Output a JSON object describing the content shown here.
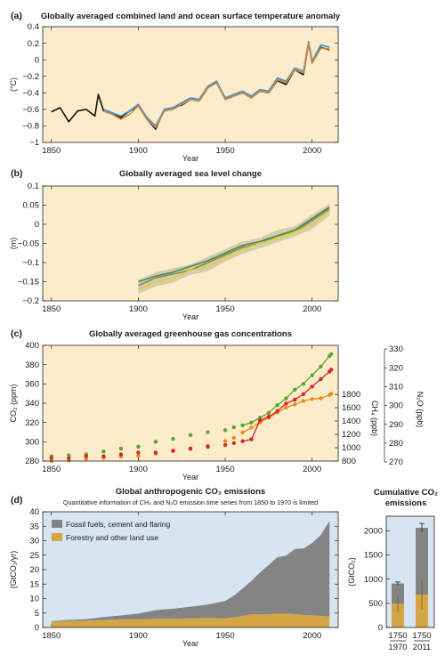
{
  "colors": {
    "panel_bg": "#fcecc9",
    "emissions_bg": "#d7e4f1",
    "temp_black": "#111111",
    "temp_blue": "#3b8fd4",
    "temp_orange": "#d5883c",
    "sea_yellow": "#e3d21e",
    "sea_green": "#4a8a3a",
    "sea_gray": "#808080",
    "co2_green": "#58a82e",
    "ch4_orange": "#ee8a16",
    "n2o_red": "#d8242c",
    "fossil_gray": "#848484",
    "forestry_gold": "#d4a543"
  },
  "chart_data": [
    {
      "panel_label": "(a)",
      "type": "line",
      "title": "Globally averaged combined land and ocean surface temperature anomaly",
      "xlabel": "Year",
      "ylabel": "(°C)",
      "xlim": [
        1845,
        2015
      ],
      "ylim": [
        -1,
        0.4
      ],
      "xticks": [
        1850,
        1900,
        1950,
        2000
      ],
      "yticks": [
        -1,
        -0.8,
        -0.6,
        -0.4,
        -0.2,
        0,
        0.2,
        0.4
      ],
      "ytick_labels": [
        "−1",
        "−0.8",
        "−0.6",
        "−0.4",
        "−0.2",
        "0",
        "0.2",
        "0.4"
      ],
      "series": [
        {
          "key": "black",
          "x": [
            1850,
            1855,
            1860,
            1865,
            1870,
            1875,
            1877,
            1880,
            1885,
            1890,
            1895,
            1900,
            1905,
            1910,
            1915,
            1920,
            1925,
            1930,
            1935,
            1940,
            1945,
            1950,
            1955,
            1960,
            1965,
            1970,
            1975,
            1980,
            1985,
            1990,
            1995,
            1998,
            2000,
            2005,
            2010
          ],
          "y": [
            -0.63,
            -0.58,
            -0.75,
            -0.62,
            -0.6,
            -0.68,
            -0.42,
            -0.62,
            -0.66,
            -0.7,
            -0.62,
            -0.56,
            -0.72,
            -0.84,
            -0.6,
            -0.58,
            -0.55,
            -0.48,
            -0.5,
            -0.34,
            -0.26,
            -0.48,
            -0.44,
            -0.4,
            -0.46,
            -0.38,
            -0.4,
            -0.25,
            -0.3,
            -0.12,
            -0.18,
            0.2,
            -0.04,
            0.15,
            0.12
          ]
        },
        {
          "key": "blue",
          "x": [
            1880,
            1885,
            1890,
            1895,
            1900,
            1905,
            1910,
            1915,
            1920,
            1925,
            1930,
            1935,
            1940,
            1945,
            1950,
            1955,
            1960,
            1965,
            1970,
            1975,
            1980,
            1985,
            1990,
            1995,
            1998,
            2000,
            2005,
            2010
          ],
          "y": [
            -0.6,
            -0.64,
            -0.68,
            -0.62,
            -0.54,
            -0.7,
            -0.8,
            -0.6,
            -0.58,
            -0.52,
            -0.46,
            -0.48,
            -0.32,
            -0.26,
            -0.46,
            -0.42,
            -0.38,
            -0.44,
            -0.36,
            -0.38,
            -0.22,
            -0.26,
            -0.1,
            -0.14,
            0.22,
            -0.02,
            0.18,
            0.15
          ]
        },
        {
          "key": "orange",
          "x": [
            1880,
            1885,
            1890,
            1895,
            1900,
            1905,
            1910,
            1915,
            1920,
            1925,
            1930,
            1935,
            1940,
            1945,
            1950,
            1955,
            1960,
            1965,
            1970,
            1975,
            1980,
            1985,
            1990,
            1995,
            1998,
            2000,
            2005,
            2010
          ],
          "y": [
            -0.62,
            -0.66,
            -0.72,
            -0.66,
            -0.56,
            -0.72,
            -0.82,
            -0.62,
            -0.6,
            -0.54,
            -0.48,
            -0.5,
            -0.34,
            -0.28,
            -0.48,
            -0.44,
            -0.4,
            -0.46,
            -0.38,
            -0.4,
            -0.24,
            -0.28,
            -0.12,
            -0.16,
            0.2,
            -0.04,
            0.14,
            0.13
          ]
        }
      ]
    },
    {
      "panel_label": "(b)",
      "type": "line",
      "title": "Globally averaged sea level change",
      "xlabel": "Year",
      "ylabel": "(m)",
      "xlim": [
        1845,
        2015
      ],
      "ylim": [
        -0.2,
        0.1
      ],
      "xticks": [
        1850,
        1900,
        1950,
        2000
      ],
      "yticks": [
        -0.2,
        -0.15,
        -0.1,
        -0.05,
        0,
        0.05,
        0.1
      ],
      "ytick_labels": [
        "−0.2",
        "−0.15",
        "−0.1",
        "−0.05",
        "0",
        "0.05",
        "0.1"
      ],
      "series": [
        {
          "key": "gray",
          "x": [
            1900,
            1910,
            1920,
            1930,
            1940,
            1950,
            1960,
            1970,
            1980,
            1990,
            2000,
            2010
          ],
          "y": [
            -0.16,
            -0.14,
            -0.13,
            -0.12,
            -0.1,
            -0.08,
            -0.06,
            -0.05,
            -0.03,
            -0.02,
            0.01,
            0.04
          ]
        },
        {
          "key": "green",
          "x": [
            1900,
            1910,
            1920,
            1930,
            1940,
            1950,
            1960,
            1970,
            1980,
            1990,
            2000,
            2010
          ],
          "y": [
            -0.15,
            -0.135,
            -0.125,
            -0.11,
            -0.095,
            -0.075,
            -0.055,
            -0.045,
            -0.03,
            -0.015,
            0.015,
            0.045
          ]
        },
        {
          "key": "yellow",
          "x": [
            1900,
            1910,
            1920,
            1930,
            1940,
            1950,
            1960,
            1970,
            1980,
            1990,
            2000,
            2010
          ],
          "y": [
            -0.17,
            -0.15,
            -0.14,
            -0.12,
            -0.11,
            -0.085,
            -0.065,
            -0.05,
            -0.035,
            -0.02,
            0.0,
            0.035
          ]
        }
      ]
    },
    {
      "panel_label": "(c)",
      "type": "scatter",
      "title": "Globally averaged greenhouse gas concentrations",
      "xlabel": "Year",
      "xlim": [
        1845,
        2015
      ],
      "xticks": [
        1850,
        1900,
        1950,
        2000
      ],
      "axes": [
        {
          "key": "co2",
          "label": "CO₂ (ppm)",
          "ylim": [
            280,
            400
          ],
          "ticks": [
            280,
            300,
            320,
            340,
            360,
            380,
            400
          ]
        },
        {
          "key": "ch4",
          "label": "CH₄ (ppb)",
          "ylim": [
            800,
            1800
          ],
          "ticks": [
            800,
            1000,
            1200,
            1400,
            1600,
            1800
          ]
        },
        {
          "key": "n2o",
          "label": "N₂O (ppb)",
          "ylim": [
            270,
            330
          ],
          "ticks": [
            270,
            280,
            290,
            300,
            310,
            320,
            330
          ]
        }
      ],
      "series": [
        {
          "key": "co2",
          "x": [
            1850,
            1860,
            1870,
            1880,
            1890,
            1900,
            1910,
            1920,
            1930,
            1940,
            1950,
            1955,
            1960,
            1965,
            1970,
            1975,
            1980,
            1985,
            1990,
            1995,
            2000,
            2005,
            2010,
            2011
          ],
          "y": [
            285,
            286,
            287,
            290,
            293,
            295,
            300,
            303,
            307,
            310,
            312,
            315,
            317,
            320,
            325,
            330,
            338,
            345,
            354,
            360,
            369,
            378,
            389,
            391
          ]
        },
        {
          "key": "ch4",
          "x": [
            1850,
            1860,
            1870,
            1880,
            1890,
            1900,
            1910,
            1920,
            1930,
            1940,
            1950,
            1955,
            1960,
            1965,
            1970,
            1975,
            1980,
            1985,
            1990,
            1995,
            2000,
            2005,
            2010,
            2011
          ],
          "y": [
            800,
            810,
            830,
            850,
            870,
            880,
            910,
            950,
            990,
            1030,
            1100,
            1150,
            1230,
            1300,
            1380,
            1450,
            1530,
            1600,
            1650,
            1700,
            1730,
            1740,
            1790,
            1805
          ]
        },
        {
          "key": "n2o",
          "x": [
            1850,
            1860,
            1870,
            1880,
            1890,
            1900,
            1910,
            1920,
            1930,
            1940,
            1950,
            1955,
            1960,
            1965,
            1970,
            1975,
            1980,
            1985,
            1990,
            1995,
            2000,
            2005,
            2010,
            2011
          ],
          "y": [
            272,
            272,
            273,
            273,
            274,
            275,
            275,
            276,
            277,
            278,
            279,
            280,
            281,
            282,
            292,
            294,
            297,
            301,
            303,
            306,
            310,
            314,
            318,
            319
          ]
        }
      ]
    },
    {
      "panel_label": "(d)",
      "type": "area",
      "title": "Global anthropogenic CO₂ emissions",
      "subtitle": "Quantitative information of CH₄ and N₂O emission time series from 1850 to 1970 is limited",
      "xlabel": "Year",
      "ylabel": "(GtCO₂/yr)",
      "xlim": [
        1845,
        2015
      ],
      "ylim": [
        0,
        40
      ],
      "xticks": [
        1850,
        1900,
        1950,
        2000
      ],
      "yticks": [
        0,
        5,
        10,
        15,
        20,
        25,
        30,
        35,
        40
      ],
      "legend": [
        "Fossil fuels, cement and flaring",
        "Forestry and other land use"
      ],
      "legend_position": "top-left",
      "x": [
        1850,
        1860,
        1870,
        1880,
        1890,
        1900,
        1910,
        1920,
        1930,
        1940,
        1950,
        1955,
        1960,
        1965,
        1970,
        1975,
        1980,
        1985,
        1990,
        1995,
        2000,
        2005,
        2010
      ],
      "series": [
        {
          "name": "Forestry and other land use",
          "values": [
            2,
            2.2,
            2.3,
            2.6,
            2.8,
            2.8,
            3,
            3,
            3.2,
            3.3,
            3.2,
            3.5,
            4,
            4.6,
            4.5,
            4.6,
            4.8,
            4.8,
            4.6,
            4.3,
            4.2,
            4.0,
            3.8
          ]
        },
        {
          "name": "Fossil fuels, cement and flaring",
          "values": [
            0.2,
            0.4,
            0.6,
            1,
            1.4,
            2,
            3,
            3.5,
            4,
            4.6,
            6,
            7.5,
            9.5,
            11.5,
            14.5,
            17,
            19.5,
            20,
            22.5,
            23,
            25,
            28,
            33
          ]
        }
      ]
    },
    {
      "type": "bar",
      "title": "Cumulative CO₂ emissions",
      "ylabel": "(GtCO₂)",
      "ylim": [
        0,
        2300
      ],
      "yticks": [
        0,
        500,
        1000,
        1500,
        2000
      ],
      "categories": [
        [
          "1750",
          "1970"
        ],
        [
          "1750",
          "2011"
        ]
      ],
      "series": [
        {
          "name": "Forestry and other land use",
          "values": [
            490,
            680
          ],
          "error": [
            180,
            300
          ]
        },
        {
          "name": "Fossil fuels, cement and flaring",
          "values": [
            420,
            1380
          ],
          "error": [
            30,
            90
          ]
        }
      ]
    }
  ]
}
